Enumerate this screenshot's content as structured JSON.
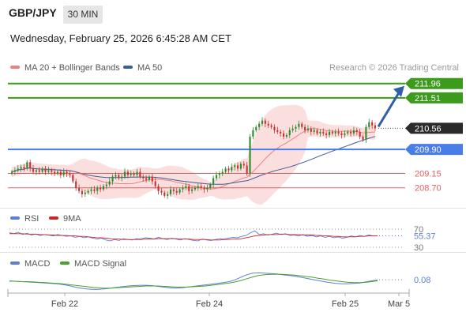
{
  "header": {
    "symbol": "GBP/JPY",
    "timeframe": "30 MIN",
    "datetime": "Wednesday, February 25, 2026 6:45:28 AM CET"
  },
  "credit": "Research © 2026 Trading Central",
  "legend": {
    "price": [
      {
        "label": "MA 20 + Bollinger Bands",
        "color": "#f08080"
      },
      {
        "label": "MA 50",
        "color": "#3a5f9a"
      }
    ],
    "rsi": [
      {
        "label": "RSI",
        "color": "#5b7fd4"
      },
      {
        "label": "9MA",
        "color": "#d0262b"
      }
    ],
    "macd": [
      {
        "label": "MACD",
        "color": "#5b7fd4"
      },
      {
        "label": "MACD Signal",
        "color": "#4aa12c"
      }
    ]
  },
  "colors": {
    "green_level": "#3c9a1c",
    "blue_level": "#4a7de8",
    "red_level": "#e06060",
    "bull": "#2e8a2e",
    "bear": "#c83232",
    "band_fill": "#fbdada",
    "arrow": "#2e5fa8"
  },
  "chart_data": [
    {
      "type": "candlestick",
      "panel": "price",
      "x_ticks": [
        "Feb 22",
        "Feb 24",
        "Feb 25",
        "Mar 5"
      ],
      "ylim": [
        208.1,
        212.2
      ],
      "levels": [
        {
          "value": 211.96,
          "label": "211.96",
          "kind": "resistance"
        },
        {
          "value": 211.51,
          "label": "211.51",
          "kind": "resistance"
        },
        {
          "value": 210.56,
          "label": "210.56",
          "kind": "last"
        },
        {
          "value": 209.9,
          "label": "209.90",
          "kind": "pivot"
        },
        {
          "value": 209.15,
          "label": "209.15",
          "kind": "support"
        },
        {
          "value": 208.7,
          "label": "208.70",
          "kind": "support"
        }
      ],
      "closes": [
        209.2,
        209.25,
        209.3,
        209.35,
        209.3,
        209.5,
        209.3,
        209.2,
        209.25,
        209.2,
        209.3,
        209.2,
        209.25,
        209.2,
        209.15,
        209.2,
        209.1,
        209.2,
        209.15,
        209.1,
        208.9,
        208.7,
        208.6,
        208.5,
        208.55,
        208.6,
        208.65,
        208.6,
        208.7,
        208.65,
        208.75,
        208.8,
        208.9,
        209.05,
        209.1,
        209.0,
        209.05,
        209.2,
        209.1,
        209.15,
        209.1,
        209.2,
        209.05,
        209.0,
        208.95,
        209.05,
        208.9,
        208.75,
        208.6,
        208.55,
        208.45,
        208.5,
        208.65,
        208.6,
        208.55,
        208.65,
        208.7,
        208.75,
        208.6,
        208.65,
        208.7,
        208.75,
        208.7,
        208.65,
        208.7,
        208.8,
        209.0,
        209.1,
        209.15,
        209.2,
        209.3,
        209.25,
        209.35,
        209.4,
        209.3,
        209.45,
        209.4,
        209.15,
        210.3,
        210.5,
        210.6,
        210.7,
        210.8,
        210.7,
        210.65,
        210.6,
        210.5,
        210.45,
        210.4,
        210.3,
        210.35,
        210.5,
        210.55,
        210.6,
        210.7,
        210.6,
        210.5,
        210.55,
        210.45,
        210.5,
        210.4,
        210.45,
        210.4,
        210.35,
        210.45,
        210.4,
        210.45,
        210.4,
        210.35,
        210.4,
        210.45,
        210.4,
        210.5,
        210.45,
        210.3,
        210.2,
        210.6,
        210.75,
        210.65,
        210.56
      ],
      "arrow_target": 211.96
    },
    {
      "type": "line",
      "panel": "rsi",
      "title": "RSI",
      "levels": [
        {
          "value": 70,
          "label": "70"
        },
        {
          "value": 30,
          "label": "30"
        }
      ],
      "last_value": 55.37,
      "last_label": "55.37",
      "series": [
        {
          "name": "RSI",
          "values": [
            62,
            60,
            63,
            58,
            61,
            57,
            59,
            56,
            58,
            57,
            55,
            58,
            56,
            54,
            55,
            52,
            54,
            51,
            53,
            50,
            48,
            50,
            46,
            44,
            47,
            45,
            49,
            47,
            46,
            49,
            48,
            51,
            50,
            48,
            52,
            49,
            47,
            50,
            48,
            46,
            49,
            47,
            45,
            44,
            48,
            46,
            45,
            47,
            49,
            48,
            50,
            52,
            51,
            54,
            56,
            62,
            66,
            58,
            60,
            57,
            59,
            61,
            58,
            60,
            56,
            57,
            55,
            58,
            54,
            56,
            53,
            55,
            52,
            54,
            51,
            53,
            50,
            52,
            55,
            53,
            56,
            54,
            57,
            55,
            55
          ]
        },
        {
          "name": "9MA",
          "values": [
            60,
            60,
            60,
            60,
            59,
            59,
            59,
            58,
            58,
            57,
            57,
            56,
            56,
            56,
            55,
            55,
            54,
            54,
            53,
            52,
            51,
            51,
            50,
            49,
            48,
            48,
            47,
            47,
            47,
            47,
            47,
            48,
            48,
            48,
            49,
            49,
            49,
            49,
            49,
            48,
            48,
            48,
            47,
            47,
            47,
            47,
            46,
            46,
            46,
            47,
            47,
            48,
            48,
            49,
            51,
            53,
            55,
            56,
            57,
            58,
            58,
            58,
            59,
            59,
            58,
            58,
            58,
            57,
            57,
            57,
            56,
            56,
            55,
            55,
            54,
            54,
            53,
            53,
            53,
            53,
            54,
            54,
            55,
            55,
            55
          ]
        }
      ]
    },
    {
      "type": "line",
      "panel": "macd",
      "title": "MACD",
      "last_value": 0.08,
      "last_label": "0.08",
      "series": [
        {
          "name": "MACD",
          "values": [
            0.05,
            0.04,
            0.03,
            0.02,
            0.01,
            0.0,
            -0.01,
            -0.02,
            -0.03,
            -0.05,
            -0.08,
            -0.12,
            -0.15,
            -0.17,
            -0.18,
            -0.18,
            -0.17,
            -0.15,
            -0.13,
            -0.11,
            -0.09,
            -0.08,
            -0.07,
            -0.07,
            -0.08,
            -0.1,
            -0.12,
            -0.14,
            -0.15,
            -0.14,
            -0.12,
            -0.1,
            -0.08,
            -0.06,
            -0.04,
            -0.02,
            0.0,
            0.03,
            0.08,
            0.15,
            0.22,
            0.26,
            0.27,
            0.26,
            0.25,
            0.24,
            0.22,
            0.2,
            0.18,
            0.15,
            0.12,
            0.09,
            0.06,
            0.03,
            0.0,
            -0.02,
            -0.03,
            -0.03,
            -0.02,
            -0.01,
            0.02,
            0.05,
            0.08
          ]
        },
        {
          "name": "MACD Signal",
          "values": [
            0.04,
            0.04,
            0.03,
            0.03,
            0.02,
            0.01,
            0.0,
            -0.01,
            -0.02,
            -0.03,
            -0.05,
            -0.07,
            -0.09,
            -0.11,
            -0.13,
            -0.14,
            -0.15,
            -0.15,
            -0.14,
            -0.13,
            -0.12,
            -0.11,
            -0.1,
            -0.09,
            -0.09,
            -0.09,
            -0.1,
            -0.11,
            -0.12,
            -0.12,
            -0.12,
            -0.11,
            -0.1,
            -0.09,
            -0.07,
            -0.05,
            -0.03,
            -0.01,
            0.02,
            0.06,
            0.11,
            0.16,
            0.2,
            0.22,
            0.23,
            0.23,
            0.23,
            0.22,
            0.21,
            0.19,
            0.17,
            0.15,
            0.12,
            0.1,
            0.07,
            0.05,
            0.03,
            0.01,
            0.0,
            0.0,
            0.01,
            0.03,
            0.05
          ]
        }
      ]
    }
  ]
}
